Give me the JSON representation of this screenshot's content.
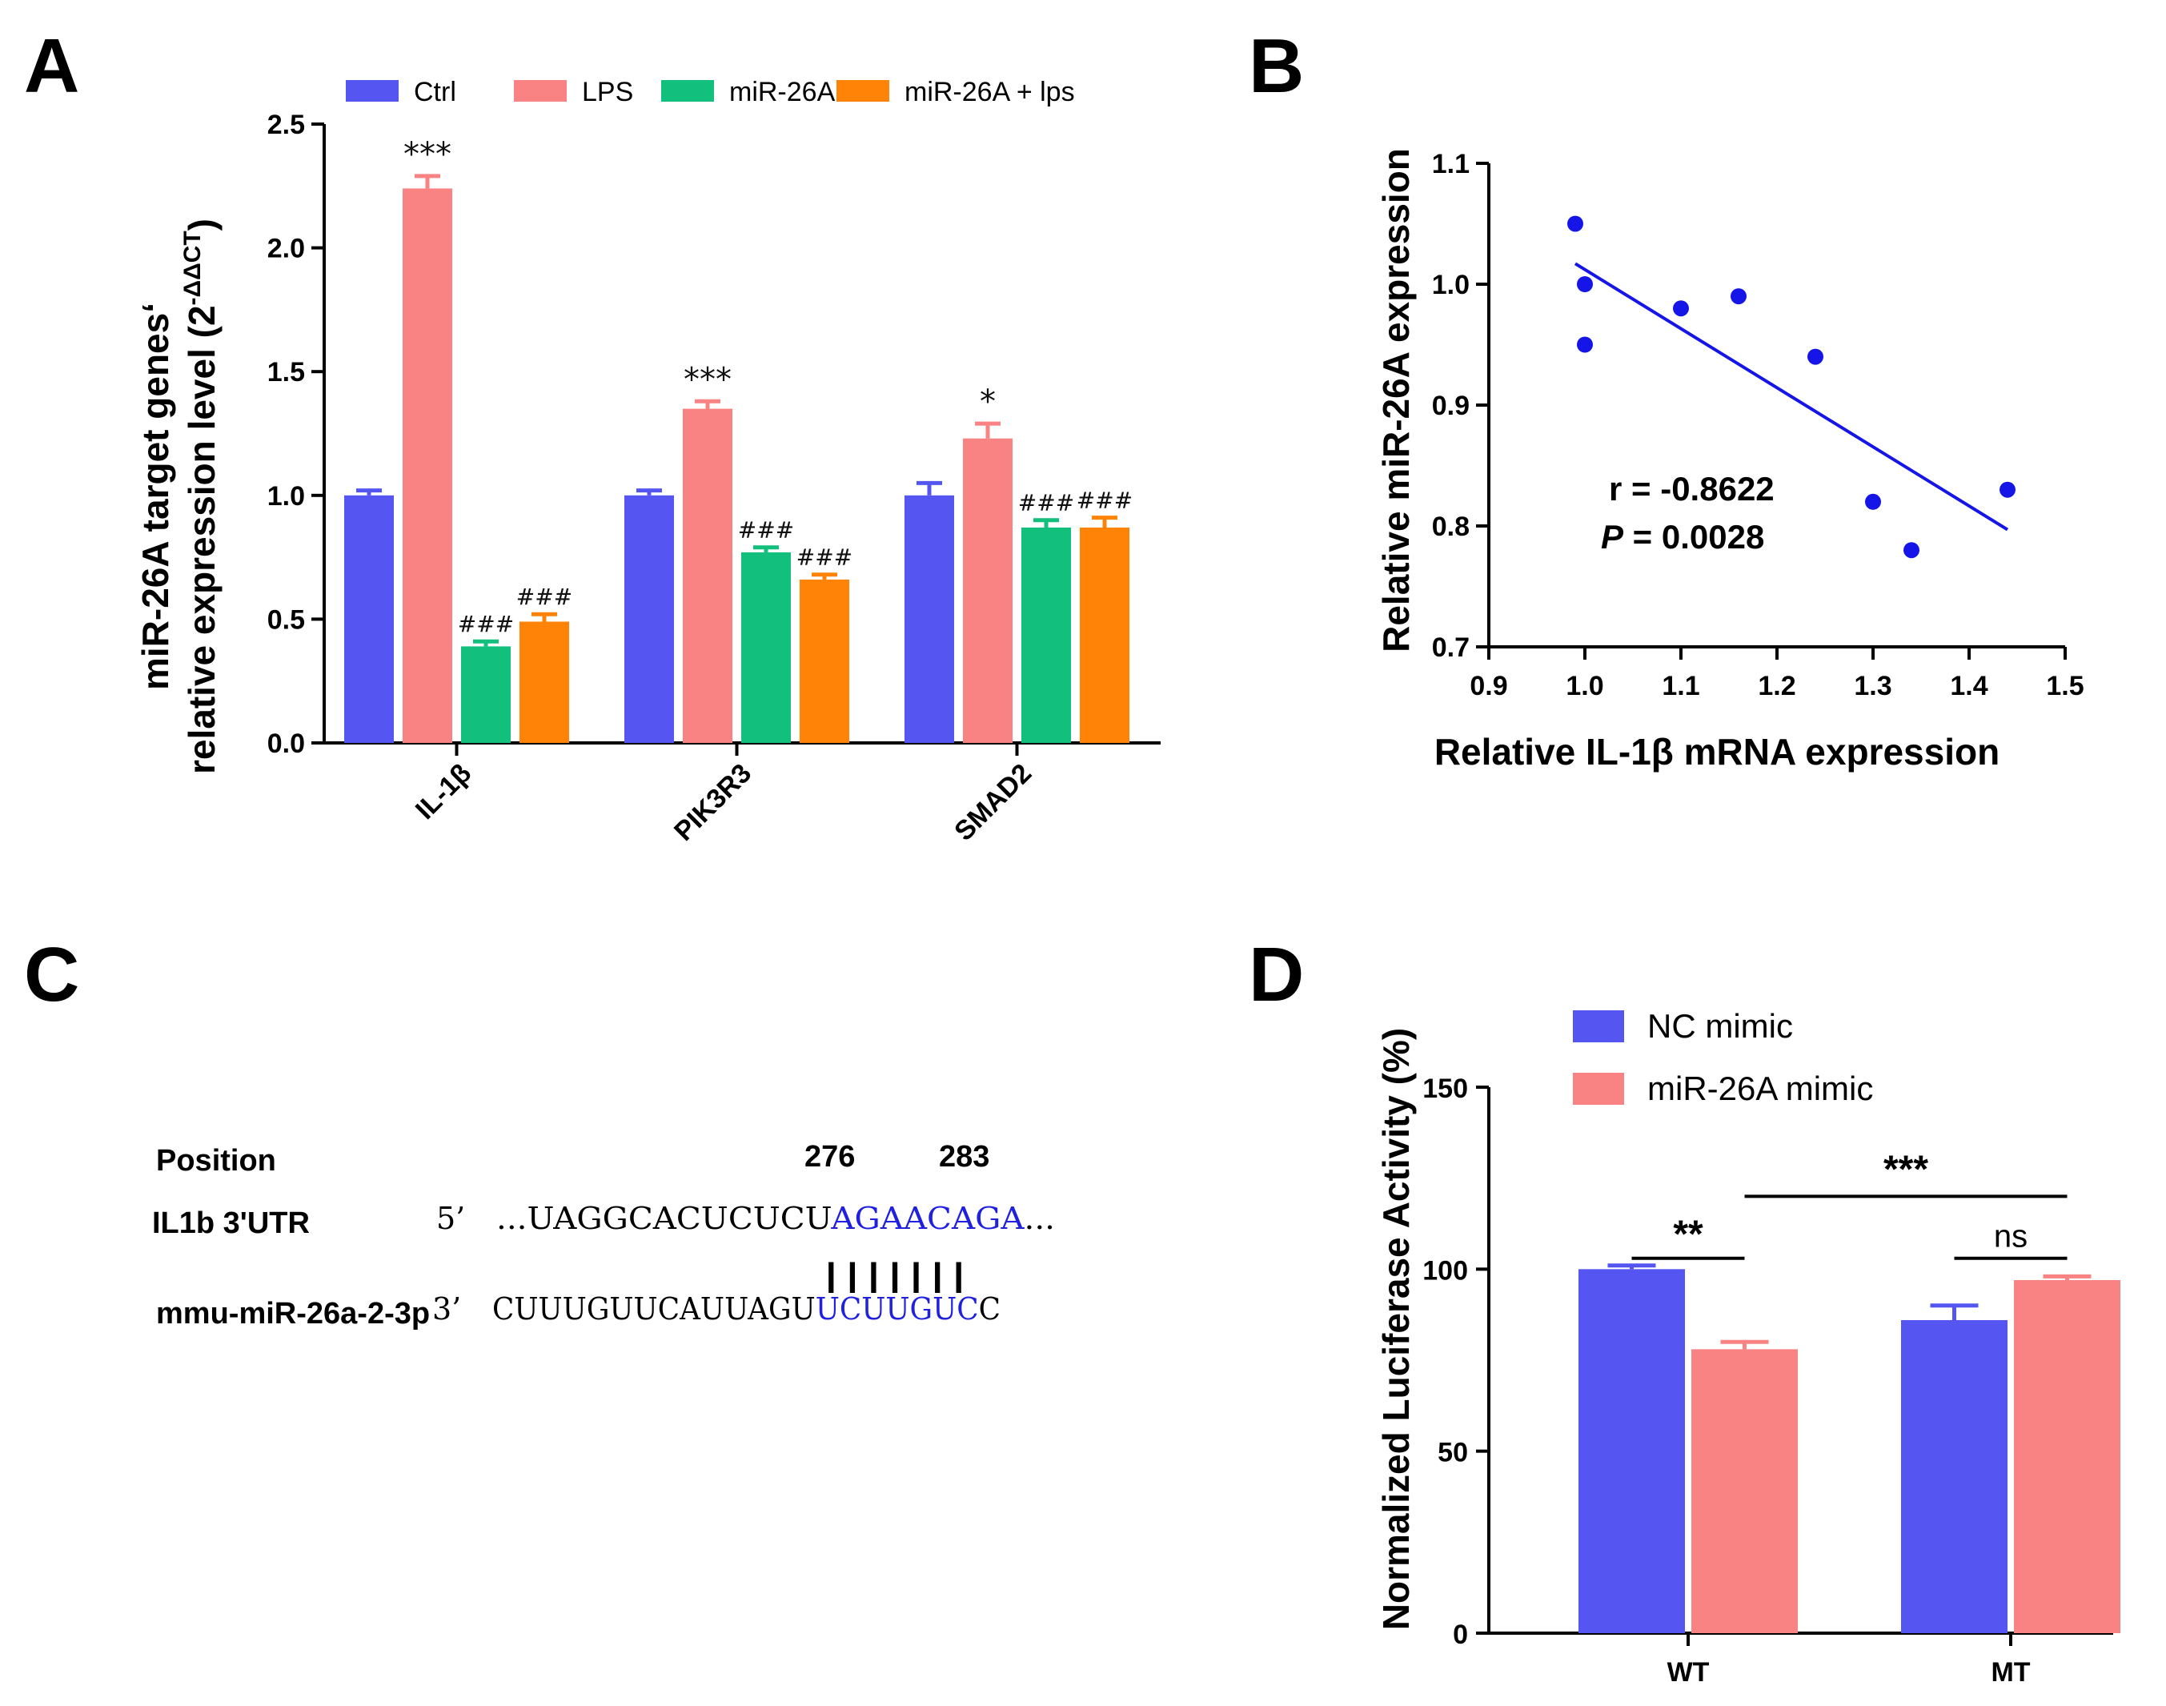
{
  "panels": {
    "a": "A",
    "b": "B",
    "c": "C",
    "d": "D"
  },
  "colors": {
    "ctrl": "#5555f2",
    "lps": "#f98282",
    "mir": "#12bf7d",
    "mirlps": "#ff8306",
    "dot": "#1515e8",
    "seq_blue": "#2020e0"
  },
  "chart_data": [
    {
      "panel": "A",
      "type": "bar",
      "categories": [
        "IL-1β",
        "PIK3R3",
        "SMAD2"
      ],
      "series": [
        {
          "name": "Ctrl",
          "values": [
            1.0,
            1.0,
            1.0
          ],
          "errors": [
            0.02,
            0.02,
            0.05
          ]
        },
        {
          "name": "LPS",
          "values": [
            2.24,
            1.35,
            1.23
          ],
          "errors": [
            0.05,
            0.03,
            0.06
          ]
        },
        {
          "name": "miR-26A",
          "values": [
            0.39,
            0.77,
            0.87
          ],
          "errors": [
            0.02,
            0.02,
            0.03
          ]
        },
        {
          "name": "miR-26A + lps",
          "values": [
            0.49,
            0.66,
            0.87
          ],
          "errors": [
            0.03,
            0.02,
            0.04
          ]
        }
      ],
      "annotations": [
        {
          "series": 1,
          "category": 0,
          "text": "***"
        },
        {
          "series": 1,
          "category": 1,
          "text": "***"
        },
        {
          "series": 1,
          "category": 2,
          "text": "*"
        },
        {
          "series": 2,
          "category": 0,
          "text": "###"
        },
        {
          "series": 3,
          "category": 0,
          "text": "###"
        },
        {
          "series": 2,
          "category": 1,
          "text": "###"
        },
        {
          "series": 3,
          "category": 1,
          "text": "###"
        },
        {
          "series": 2,
          "category": 2,
          "text": "###"
        },
        {
          "series": 3,
          "category": 2,
          "text": "###"
        }
      ],
      "ylabel_line1": "miR-26A target genes‘",
      "ylabel_line2_prefix": "relative expression level (2",
      "ylabel_line2_sup": "-ΔΔCT",
      "ylabel_line2_suffix": ")",
      "ylim": [
        0,
        2.5
      ],
      "yticks": [
        "0.0",
        "0.5",
        "1.0",
        "1.5",
        "2.0",
        "2.5"
      ],
      "legend_position": "top"
    },
    {
      "panel": "B",
      "type": "scatter",
      "points": [
        {
          "x": 0.99,
          "y": 1.05
        },
        {
          "x": 1.0,
          "y": 1.0
        },
        {
          "x": 1.0,
          "y": 0.95
        },
        {
          "x": 1.1,
          "y": 0.98
        },
        {
          "x": 1.16,
          "y": 0.99
        },
        {
          "x": 1.24,
          "y": 0.94
        },
        {
          "x": 1.3,
          "y": 0.82
        },
        {
          "x": 1.34,
          "y": 0.78
        },
        {
          "x": 1.44,
          "y": 0.83
        }
      ],
      "fit_line": {
        "x1": 0.99,
        "y1": 1.017,
        "x2": 1.44,
        "y2": 0.797
      },
      "xlabel": "Relative IL-1β mRNA expression",
      "ylabel": "Relative miR-26A expression",
      "xlim": [
        0.9,
        1.5
      ],
      "ylim": [
        0.7,
        1.1
      ],
      "xticks": [
        "0.9",
        "1.0",
        "1.1",
        "1.2",
        "1.3",
        "1.4",
        "1.5"
      ],
      "yticks": [
        "0.7",
        "0.8",
        "0.9",
        "1.0",
        "1.1"
      ],
      "stat_r": "r = -0.8622",
      "stat_p_italic": "P",
      "stat_p_value": " = 0.0028"
    },
    {
      "panel": "D",
      "type": "bar",
      "categories": [
        "WT",
        "MT"
      ],
      "series": [
        {
          "name": "NC mimic",
          "values": [
            100,
            86
          ],
          "errors": [
            1,
            4
          ]
        },
        {
          "name": "miR-26A mimic",
          "values": [
            78,
            97
          ],
          "errors": [
            2,
            1
          ]
        }
      ],
      "ylabel": "Normalized Luciferase Activity (%)",
      "ylim": [
        0,
        150
      ],
      "yticks": [
        "0",
        "50",
        "100",
        "150"
      ],
      "significance": [
        {
          "label": "**",
          "between": "WT NC mimic vs WT miR-26A mimic"
        },
        {
          "label": "ns",
          "between": "MT NC mimic vs MT miR-26A mimic"
        },
        {
          "label": "***",
          "between": "WT miR-26A mimic vs MT miR-26A mimic"
        }
      ],
      "legend_position": "top-left"
    }
  ],
  "panel_c": {
    "position_label": "Position",
    "pos_start": "276",
    "pos_end": "283",
    "utr_label": "IL1b 3'UTR",
    "utr_prime": "5’",
    "utr_seq_black": "...UAGGCACUCUCU",
    "utr_seq_blue": "AGAACAGA",
    "utr_seq_tail": "...",
    "mirna_label": "mmu-miR-26a-2-3p",
    "mirna_prime": "3’",
    "mirna_seq_black": "CUUUGUUCAUUAGU",
    "mirna_seq_blue": "UCUUGUC",
    "mirna_seq_tail": "C",
    "pairing": "|||||||"
  }
}
